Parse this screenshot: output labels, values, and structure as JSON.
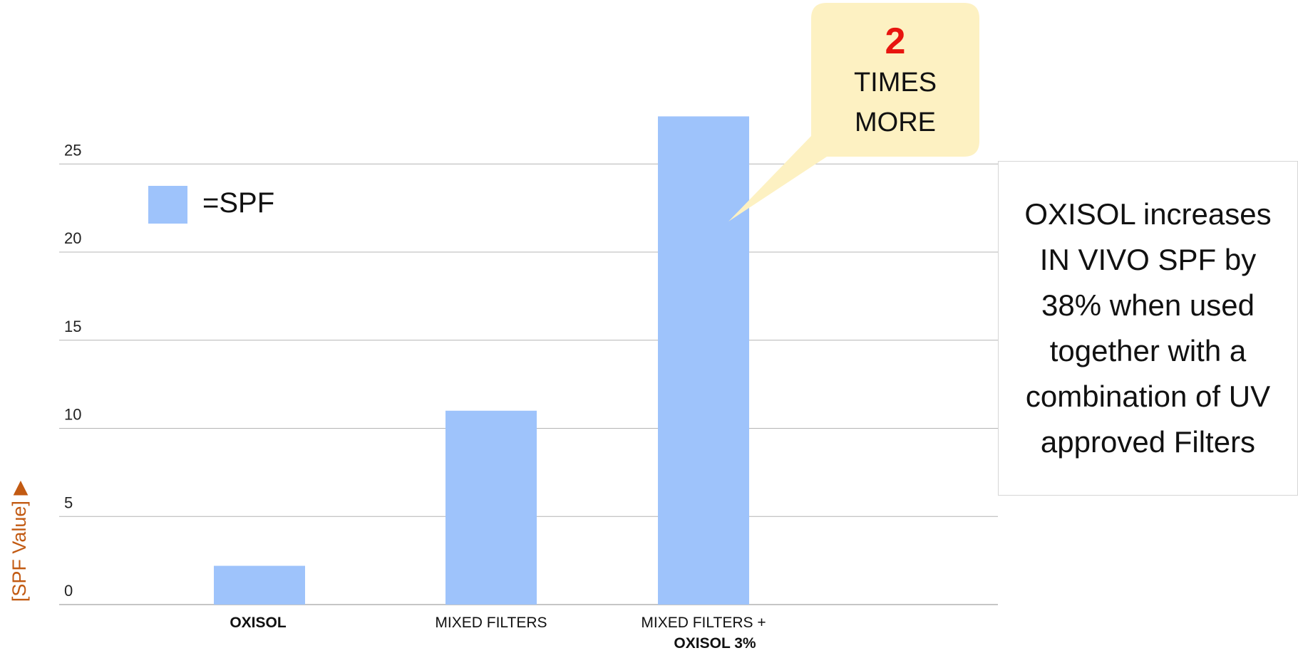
{
  "colors": {
    "bar": "#9ec3fb",
    "grid": "#b4b4b4",
    "callout_fill": "#fdf1c2",
    "callout_accent": "#e8150f",
    "category_accent_orange": "#ed6a00",
    "category_accent_red": "#e4151a",
    "ylabel": "#c25a12"
  },
  "chart_data": {
    "type": "bar",
    "title": "",
    "xlabel": "",
    "ylabel": "[SPF  Value]",
    "ylim": [
      0,
      27.8
    ],
    "yticks": [
      0,
      5,
      10,
      15,
      20,
      25
    ],
    "grid": true,
    "categories": [
      {
        "line1": "OXISOL",
        "line2": "",
        "style": "orange-bold"
      },
      {
        "line1": "MIXED FILTERS",
        "line2": "",
        "style": "plain"
      },
      {
        "line1": "MIXED FILTERS +",
        "line2": "OXISOL 3%",
        "style": "red-bold-second"
      }
    ],
    "series": [
      {
        "name": "=SPF",
        "values": [
          2.2,
          11.0,
          27.7
        ]
      }
    ],
    "legend": {
      "label": "=SPF",
      "position": "top-left"
    }
  },
  "callout": {
    "number": "2",
    "line1": "TIMES",
    "line2": "MORE"
  },
  "info_box": {
    "text": "OXISOL increases IN VIVO SPF by 38% when used together with a combination of UV approved Filters"
  }
}
